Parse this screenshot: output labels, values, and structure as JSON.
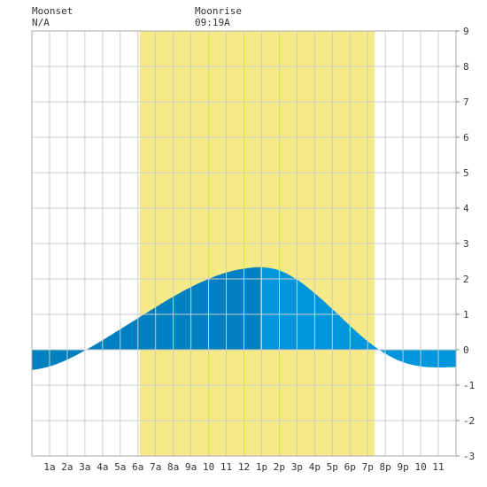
{
  "header": {
    "moonset_label": "Moonset",
    "moonset_time": "N/A",
    "moonrise_label": "Moonrise",
    "moonrise_time": "09:19A"
  },
  "colors": {
    "daylight": "#f5ea87",
    "tide_above_morning": "#0080c0",
    "tide_above_afternoon": "#0096dc",
    "tide_below": "#0080c0",
    "grid": "#cccccc",
    "background": "#ffffff"
  },
  "chart_data": {
    "type": "area",
    "title": "",
    "xlabel": "",
    "ylabel": "",
    "x_ticks": [
      "1a",
      "2a",
      "3a",
      "4a",
      "5a",
      "6a",
      "7a",
      "8a",
      "9a",
      "10",
      "11",
      "12",
      "1p",
      "2p",
      "3p",
      "4p",
      "5p",
      "6p",
      "7p",
      "8p",
      "9p",
      "10",
      "11"
    ],
    "y_ticks": [
      "-3",
      "-2",
      "-1",
      "0",
      "1",
      "2",
      "3",
      "4",
      "5",
      "6",
      "7",
      "8",
      "9"
    ],
    "xlim": [
      0,
      24
    ],
    "ylim": [
      -3,
      9
    ],
    "grid": true,
    "daylight_hours": [
      6.1,
      19.4
    ],
    "series": [
      {
        "x": [
          0,
          1,
          2,
          3,
          4,
          5,
          6,
          7,
          8,
          9,
          10,
          11,
          12,
          13,
          14,
          15,
          16,
          17,
          18,
          19,
          20,
          21,
          22,
          23,
          24
        ],
        "y": [
          -0.57,
          -0.47,
          -0.28,
          -0.02,
          0.27,
          0.58,
          0.89,
          1.2,
          1.5,
          1.77,
          2.0,
          2.18,
          2.29,
          2.33,
          2.24,
          1.98,
          1.6,
          1.15,
          0.68,
          0.24,
          -0.11,
          -0.35,
          -0.47,
          -0.5,
          -0.49
        ]
      }
    ]
  }
}
